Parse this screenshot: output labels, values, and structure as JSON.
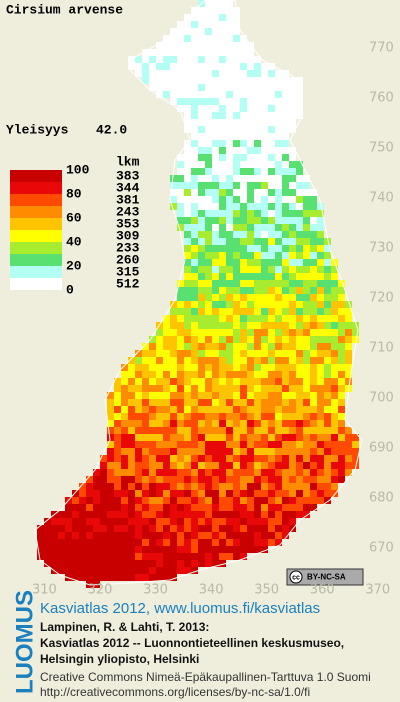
{
  "title": "Cirsium arvense",
  "frequency": {
    "label": "Yleisyys",
    "value": "42.0"
  },
  "legend": {
    "scale_labels": [
      100,
      80,
      60,
      40,
      20,
      0
    ],
    "count_header": "lkm",
    "counts": [
      383,
      344,
      381,
      243,
      353,
      309,
      233,
      260,
      315,
      512
    ],
    "colors": [
      "#c80000",
      "#e80808",
      "#ff4a00",
      "#ff8c00",
      "#ffc400",
      "#ffff00",
      "#a8ec30",
      "#58e070",
      "#b4fff4",
      "#ffffff"
    ]
  },
  "map": {
    "xlim": [
      302,
      374
    ],
    "ylim": [
      660,
      780
    ],
    "xticks": [
      310,
      320,
      330,
      340,
      350,
      360,
      370
    ],
    "yticks": [
      770,
      760,
      750,
      740,
      730,
      720,
      710,
      700,
      690,
      680,
      670
    ]
  },
  "license_badge": "BY-NC-SA",
  "footer": {
    "logo": "LUOMUS",
    "headline": "Kasviatlas 2012, www.luomus.fi/kasviatlas",
    "citation": [
      "Lampinen, R. & Lahti, T. 2013:",
      "Kasviatlas 2012 -- Luonnontieteellinen keskusmuseo,",
      "Helsingin yliopisto, Helsinki"
    ],
    "license": [
      "Creative Commons Nimeä-Epäkaupallinen-Tarttuva 1.0 Suomi",
      "http://creativecommons.org/licenses/by-nc-sa/1.0/fi"
    ]
  }
}
